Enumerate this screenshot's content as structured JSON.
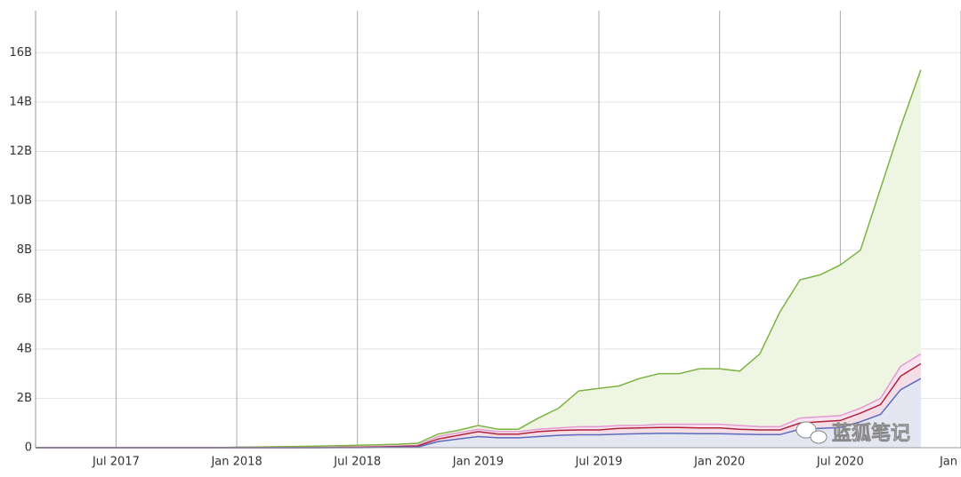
{
  "chart_data": {
    "type": "area",
    "x": [
      "2017-03",
      "2017-04",
      "2017-05",
      "2017-06",
      "2017-07",
      "2017-08",
      "2017-09",
      "2017-10",
      "2017-11",
      "2017-12",
      "2018-01",
      "2018-02",
      "2018-03",
      "2018-04",
      "2018-05",
      "2018-06",
      "2018-07",
      "2018-08",
      "2018-09",
      "2018-10",
      "2018-11",
      "2018-12",
      "2019-01",
      "2019-02",
      "2019-03",
      "2019-04",
      "2019-05",
      "2019-06",
      "2019-07",
      "2019-08",
      "2019-09",
      "2019-10",
      "2019-11",
      "2019-12",
      "2020-01",
      "2020-02",
      "2020-03",
      "2020-04",
      "2020-05",
      "2020-06",
      "2020-07",
      "2020-08",
      "2020-09",
      "2020-10",
      "2020-11"
    ],
    "series": [
      {
        "color": "#7cb342",
        "fill": "#eef6e3",
        "values": [
          0,
          0,
          0,
          0,
          0,
          0,
          0,
          0,
          0,
          0,
          0.02,
          0.03,
          0.04,
          0.05,
          0.06,
          0.08,
          0.1,
          0.12,
          0.14,
          0.18,
          0.55,
          0.7,
          0.9,
          0.75,
          0.75,
          1.2,
          1.6,
          2.3,
          2.4,
          2.5,
          2.8,
          3.0,
          3.0,
          3.2,
          3.2,
          3.1,
          3.8,
          5.5,
          6.8,
          7.0,
          7.4,
          8.0,
          10.5,
          13.0,
          15.3
        ]
      },
      {
        "color": "#e39ad0",
        "fill": "#f8e3f1",
        "values": [
          0,
          0,
          0,
          0,
          0,
          0,
          0,
          0,
          0,
          0,
          0,
          0,
          0,
          0,
          0.01,
          0.02,
          0.03,
          0.05,
          0.07,
          0.1,
          0.45,
          0.6,
          0.75,
          0.65,
          0.65,
          0.75,
          0.8,
          0.85,
          0.85,
          0.9,
          0.9,
          0.95,
          0.95,
          0.95,
          0.95,
          0.9,
          0.85,
          0.85,
          1.2,
          1.25,
          1.3,
          1.6,
          2.0,
          3.3,
          3.8
        ]
      },
      {
        "color": "#b0243a",
        "fill": "#f3dde6",
        "values": [
          0,
          0,
          0,
          0,
          0,
          0,
          0,
          0,
          0,
          0,
          0,
          0,
          0,
          0,
          0,
          0.01,
          0.02,
          0.03,
          0.05,
          0.07,
          0.35,
          0.5,
          0.65,
          0.55,
          0.55,
          0.65,
          0.7,
          0.72,
          0.72,
          0.78,
          0.8,
          0.82,
          0.82,
          0.8,
          0.8,
          0.75,
          0.72,
          0.72,
          1.0,
          1.05,
          1.1,
          1.4,
          1.75,
          2.9,
          3.4
        ]
      },
      {
        "color": "#5c6bc0",
        "fill": "#e4e7f2",
        "values": [
          0,
          0,
          0,
          0,
          0,
          0,
          0,
          0,
          0,
          0,
          0,
          0,
          0,
          0,
          0,
          0,
          0,
          0.01,
          0.02,
          0.03,
          0.25,
          0.35,
          0.45,
          0.4,
          0.4,
          0.45,
          0.5,
          0.52,
          0.52,
          0.55,
          0.57,
          0.58,
          0.58,
          0.57,
          0.57,
          0.55,
          0.53,
          0.53,
          0.75,
          0.78,
          0.82,
          1.05,
          1.35,
          2.35,
          2.8
        ]
      }
    ],
    "xlim": [
      "2017-03",
      "2021-01"
    ],
    "xticks": [
      {
        "value": "2017-07",
        "label": "Jul 2017"
      },
      {
        "value": "2018-01",
        "label": "Jan 2018"
      },
      {
        "value": "2018-07",
        "label": "Jul 2018"
      },
      {
        "value": "2019-01",
        "label": "Jan 2019"
      },
      {
        "value": "2019-07",
        "label": "Jul 2019"
      },
      {
        "value": "2020-01",
        "label": "Jan 2020"
      },
      {
        "value": "2020-07",
        "label": "Jul 2020"
      },
      {
        "value": "2021-01",
        "label": "Jan"
      }
    ],
    "ylim": [
      0,
      17.7
    ],
    "yticks": [
      0,
      {
        "value": 2,
        "label": "2B"
      },
      {
        "value": 4,
        "label": "4B"
      },
      {
        "value": 6,
        "label": "6B"
      },
      {
        "value": 8,
        "label": "8B"
      },
      {
        "value": 10,
        "label": "10B"
      },
      {
        "value": 12,
        "label": "12B"
      },
      {
        "value": 14,
        "label": "14B"
      },
      {
        "value": 16,
        "label": "16B"
      }
    ],
    "grid": true,
    "watermark": "蓝狐笔记"
  }
}
